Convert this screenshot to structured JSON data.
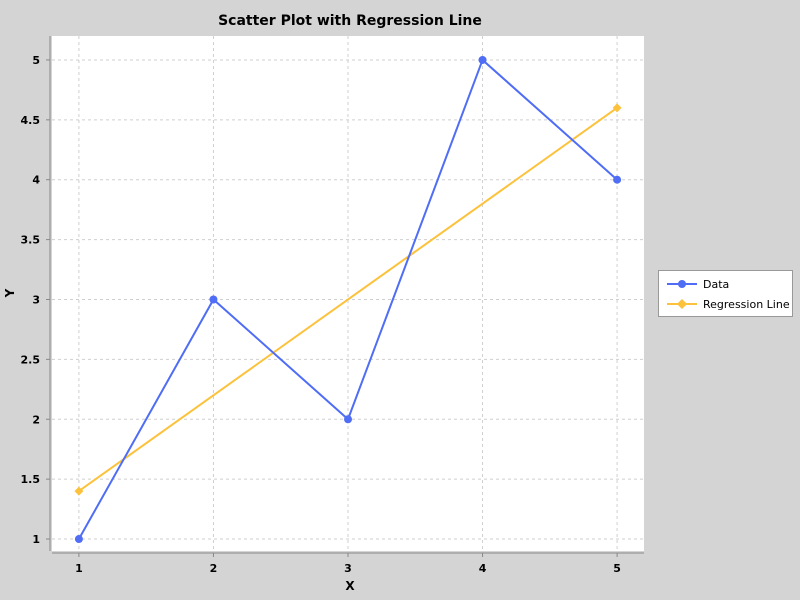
{
  "chart_data": {
    "type": "line",
    "title": "Scatter Plot with Regression Line",
    "xlabel": "X",
    "ylabel": "Y",
    "xlim": [
      0.8,
      5.2
    ],
    "ylim": [
      0.9,
      5.2
    ],
    "x_ticks": [
      "1",
      "2",
      "3",
      "4",
      "5"
    ],
    "y_ticks": [
      "1",
      "1.5",
      "2",
      "2.5",
      "3",
      "3.5",
      "4",
      "4.5",
      "5"
    ],
    "grid": true,
    "legend_position": "right",
    "series": [
      {
        "name": "Data",
        "color": "#4f6df5",
        "marker": "circle",
        "x": [
          1,
          2,
          3,
          4,
          5
        ],
        "y": [
          1,
          3,
          2,
          5,
          4
        ]
      },
      {
        "name": "Regression Line",
        "color": "#fcc23c",
        "marker": "diamond",
        "x": [
          1,
          5
        ],
        "y": [
          1.4,
          4.6
        ]
      }
    ]
  }
}
